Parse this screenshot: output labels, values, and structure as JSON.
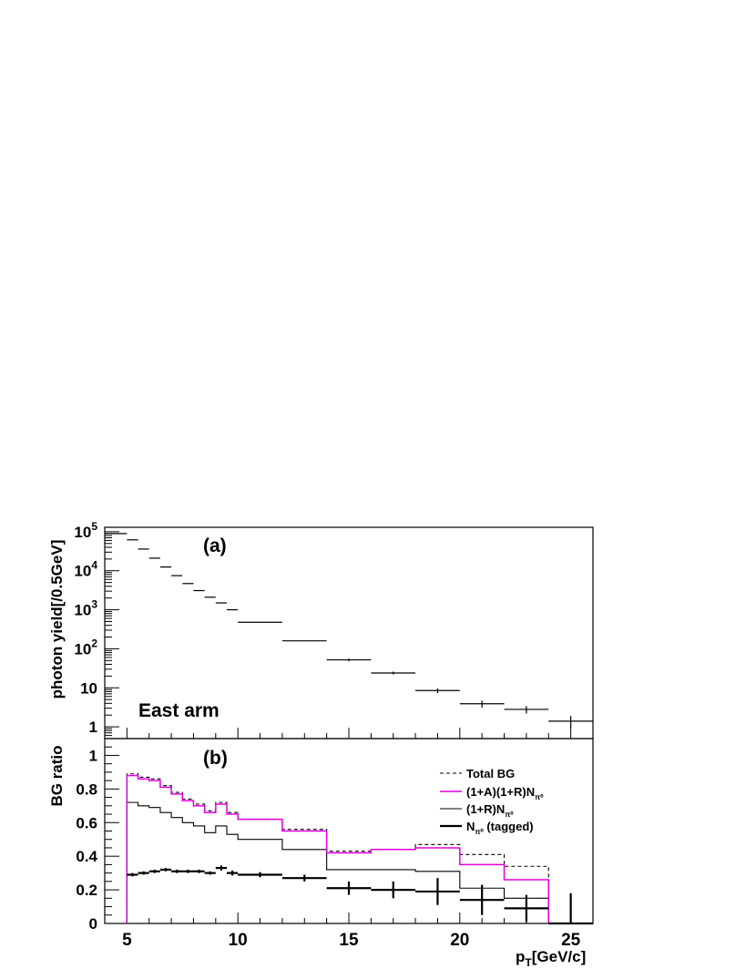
{
  "chart_data": [
    {
      "panel_label": "(a)",
      "type": "step",
      "annotation": "East arm",
      "ylabel": "photon yield[/0.5GeV]",
      "yscale": "log",
      "ylim": [
        0.5,
        130000
      ],
      "xlim": [
        4,
        26
      ],
      "ytick_labels": [
        {
          "value": 1,
          "label": "1"
        },
        {
          "value": 10,
          "label": "10"
        },
        {
          "value": 100,
          "label": "10",
          "sup": "2"
        },
        {
          "value": 1000,
          "label": "10",
          "sup": "3"
        },
        {
          "value": 10000,
          "label": "10",
          "sup": "4"
        },
        {
          "value": 100000,
          "label": "10",
          "sup": "5"
        }
      ],
      "series": [
        {
          "bins": [
            {
              "x0": 4.0,
              "x1": 5.0,
              "y": 90000,
              "err": 0
            },
            {
              "x0": 5.0,
              "x1": 5.5,
              "y": 62000,
              "err": 0
            },
            {
              "x0": 5.5,
              "x1": 6.0,
              "y": 36000,
              "err": 0
            },
            {
              "x0": 6.0,
              "x1": 6.5,
              "y": 21000,
              "err": 0
            },
            {
              "x0": 6.5,
              "x1": 7.0,
              "y": 12500,
              "err": 0
            },
            {
              "x0": 7.0,
              "x1": 7.5,
              "y": 7500,
              "err": 0
            },
            {
              "x0": 7.5,
              "x1": 8.0,
              "y": 4700,
              "err": 0
            },
            {
              "x0": 8.0,
              "x1": 8.5,
              "y": 3100,
              "err": 0
            },
            {
              "x0": 8.5,
              "x1": 9.0,
              "y": 2100,
              "err": 0
            },
            {
              "x0": 9.0,
              "x1": 9.5,
              "y": 1500,
              "err": 0
            },
            {
              "x0": 9.5,
              "x1": 10.0,
              "y": 1000,
              "err": 0
            },
            {
              "x0": 10.0,
              "x1": 12.0,
              "y": 480,
              "err": 0
            },
            {
              "x0": 12.0,
              "x1": 14.0,
              "y": 160,
              "err": 0
            },
            {
              "x0": 14.0,
              "x1": 16.0,
              "y": 52,
              "err": 4
            },
            {
              "x0": 16.0,
              "x1": 18.0,
              "y": 24,
              "err": 2
            },
            {
              "x0": 18.0,
              "x1": 20.0,
              "y": 8.5,
              "err": 1.2
            },
            {
              "x0": 20.0,
              "x1": 22.0,
              "y": 3.9,
              "err": 0.8
            },
            {
              "x0": 22.0,
              "x1": 24.0,
              "y": 2.8,
              "err": 0.6
            },
            {
              "x0": 24.0,
              "x1": 26.0,
              "y": 1.4,
              "err": 0.5
            }
          ]
        }
      ]
    },
    {
      "panel_label": "(b)",
      "type": "step",
      "ylabel": "BG ratio",
      "xlabel": "p",
      "xlabel_sub": "T",
      "xlabel_unit": "[GeV/c]",
      "xlim": [
        4,
        26
      ],
      "ylim": [
        0,
        1.1
      ],
      "xtick_labels": [
        "5",
        "10",
        "15",
        "20",
        "25"
      ],
      "xticks": [
        5,
        10,
        15,
        20,
        25
      ],
      "ytick_labels": [
        "0",
        "0.2",
        "0.4",
        "0.6",
        "0.8",
        "1"
      ],
      "yticks": [
        0,
        0.2,
        0.4,
        0.6,
        0.8,
        1.0
      ],
      "legend_position": "top-right",
      "bin_edges": [
        5,
        5.5,
        6,
        6.5,
        7,
        7.5,
        8,
        8.5,
        9,
        9.5,
        10,
        12,
        14,
        16,
        18,
        20,
        22,
        24
      ],
      "series": [
        {
          "name": "Total BG",
          "style": "dashed",
          "color": "#000000",
          "values": [
            0.89,
            0.87,
            0.86,
            0.82,
            0.78,
            0.74,
            0.71,
            0.67,
            0.72,
            0.66,
            0.62,
            0.56,
            0.43,
            0.44,
            0.47,
            0.41,
            0.34
          ]
        },
        {
          "name": "(1+A)(1+R)N",
          "sub": "π⁰",
          "style": "solid",
          "color": "#e000e0",
          "values": [
            0.88,
            0.86,
            0.85,
            0.81,
            0.77,
            0.73,
            0.7,
            0.66,
            0.71,
            0.65,
            0.62,
            0.55,
            0.42,
            0.44,
            0.45,
            0.35,
            0.26
          ]
        },
        {
          "name": "(1+R)N",
          "sub": "π⁰",
          "style": "solid",
          "color": "#000000",
          "values": [
            0.72,
            0.7,
            0.69,
            0.66,
            0.63,
            0.6,
            0.58,
            0.54,
            0.58,
            0.53,
            0.5,
            0.44,
            0.32,
            0.32,
            0.31,
            0.21,
            0.15
          ]
        },
        {
          "name": "N",
          "sub": "π⁰",
          "name_suffix": " (tagged)",
          "style": "errorbars",
          "color": "#000000",
          "points": [
            {
              "x0": 5.0,
              "x1": 5.5,
              "y": 0.29,
              "err": 0.01
            },
            {
              "x0": 5.5,
              "x1": 6.0,
              "y": 0.3,
              "err": 0.01
            },
            {
              "x0": 6.0,
              "x1": 6.5,
              "y": 0.31,
              "err": 0.01
            },
            {
              "x0": 6.5,
              "x1": 7.0,
              "y": 0.32,
              "err": 0.01
            },
            {
              "x0": 7.0,
              "x1": 7.5,
              "y": 0.31,
              "err": 0.01
            },
            {
              "x0": 7.5,
              "x1": 8.0,
              "y": 0.31,
              "err": 0.01
            },
            {
              "x0": 8.0,
              "x1": 8.5,
              "y": 0.31,
              "err": 0.01
            },
            {
              "x0": 8.5,
              "x1": 9.0,
              "y": 0.3,
              "err": 0.01
            },
            {
              "x0": 9.0,
              "x1": 9.5,
              "y": 0.33,
              "err": 0.015
            },
            {
              "x0": 9.5,
              "x1": 10.0,
              "y": 0.3,
              "err": 0.015
            },
            {
              "x0": 10.0,
              "x1": 12.0,
              "y": 0.29,
              "err": 0.015
            },
            {
              "x0": 12.0,
              "x1": 14.0,
              "y": 0.27,
              "err": 0.02
            },
            {
              "x0": 14.0,
              "x1": 16.0,
              "y": 0.21,
              "err": 0.04
            },
            {
              "x0": 16.0,
              "x1": 18.0,
              "y": 0.2,
              "err": 0.05
            },
            {
              "x0": 18.0,
              "x1": 20.0,
              "y": 0.19,
              "err": 0.08
            },
            {
              "x0": 20.0,
              "x1": 22.0,
              "y": 0.14,
              "err": 0.09
            },
            {
              "x0": 22.0,
              "x1": 24.0,
              "y": 0.09,
              "err": 0.08
            },
            {
              "x0": 24.0,
              "x1": 26.0,
              "y": 0.0,
              "err": 0.18
            }
          ]
        }
      ]
    }
  ]
}
